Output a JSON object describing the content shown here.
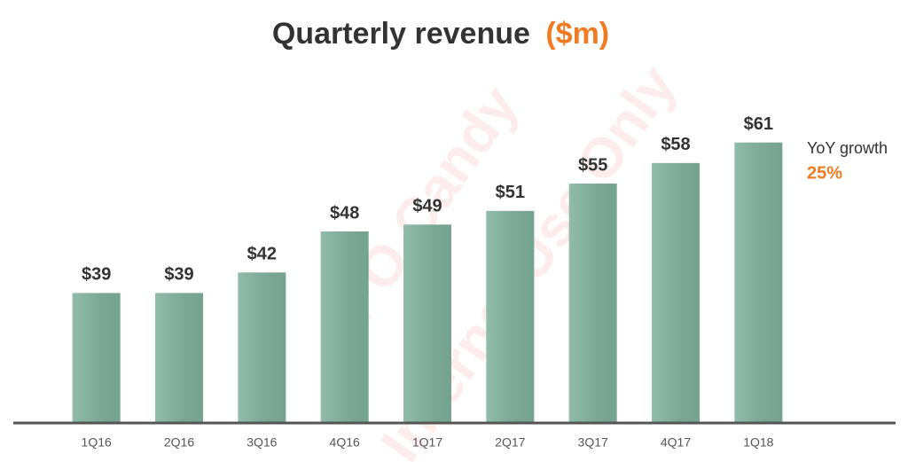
{
  "chart_data": {
    "type": "bar",
    "title": "Quarterly revenue",
    "title_unit": "($m)",
    "categories": [
      "1Q16",
      "2Q16",
      "3Q16",
      "4Q16",
      "1Q17",
      "2Q17",
      "3Q17",
      "4Q17",
      "1Q18"
    ],
    "values": [
      39,
      39,
      42,
      48,
      49,
      51,
      55,
      58,
      61
    ],
    "value_labels": [
      "$39",
      "$39",
      "$42",
      "$48",
      "$49",
      "$51",
      "$55",
      "$58",
      "$61"
    ],
    "color": "#7eb19b",
    "accent_color": "#f07b22",
    "ylim": [
      20,
      62
    ],
    "annotation": {
      "text": "YoY growth",
      "value": "25%"
    },
    "watermark": [
      "IPO Candy",
      "Internal Use Only"
    ]
  }
}
